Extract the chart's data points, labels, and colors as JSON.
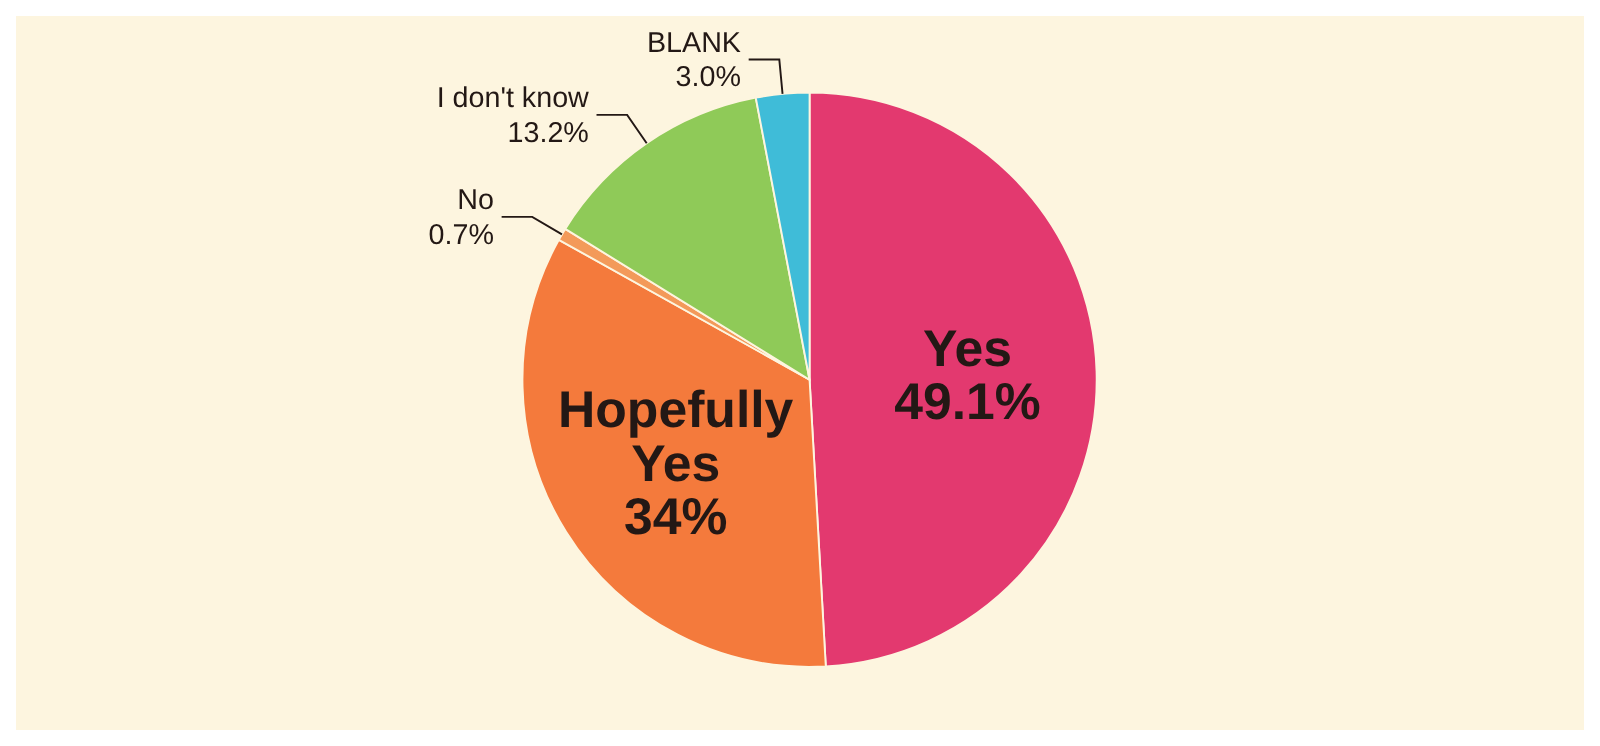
{
  "chart_data": {
    "type": "pie",
    "categories": [
      "Yes",
      "Hopefully Yes",
      "No",
      "I don't know",
      "BLANK"
    ],
    "values": [
      49.1,
      34,
      0.7,
      13.2,
      3.0
    ],
    "value_labels": [
      "49.1%",
      "34%",
      "0.7%",
      "13.2%",
      "3.0%"
    ],
    "colors": [
      "#e3396f",
      "#f47a3c",
      "#f39a5a",
      "#8fca58",
      "#3fbcd8"
    ]
  }
}
